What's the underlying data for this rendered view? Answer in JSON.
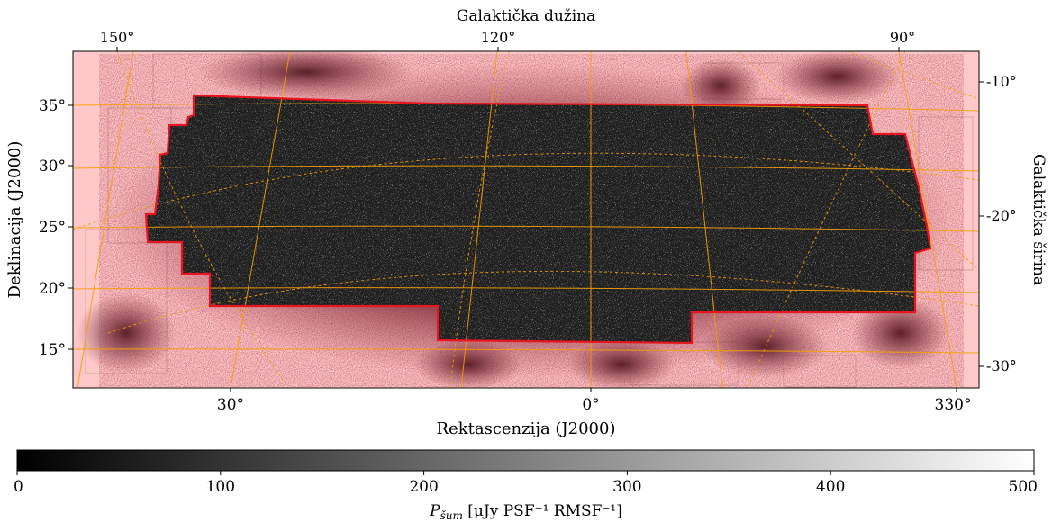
{
  "chart_data": {
    "type": "heatmap",
    "title": "",
    "top_axis_label": "Galaktička dužina",
    "top_ticks": [
      "150°",
      "120°",
      "90°"
    ],
    "right_axis_label": "Galaktička širina",
    "right_ticks": [
      "-10°",
      "-20°",
      "-30°"
    ],
    "xlabel": "Rektascenzija (J2000)",
    "x_ticks": [
      "30°",
      "0°",
      "330°"
    ],
    "ylabel": "Deklinacija (J2000)",
    "y_ticks": [
      "35°",
      "30°",
      "25°",
      "20°",
      "15°"
    ],
    "y_range_deg": [
      12,
      39.3
    ],
    "colorbar": {
      "label_prefix": "P",
      "label_sub": "šum",
      "label_suffix": " [μJy PSF⁻¹ RMSF⁻¹]",
      "ticks": [
        "0",
        "100",
        "200",
        "300",
        "400",
        "500"
      ],
      "range": [
        0,
        500
      ],
      "colormap": "gray"
    },
    "grid": true,
    "colors": {
      "background_mask": "#ffc8c8",
      "footprint_outline": "#e8141e",
      "grid_lines": "#f5a000"
    }
  }
}
